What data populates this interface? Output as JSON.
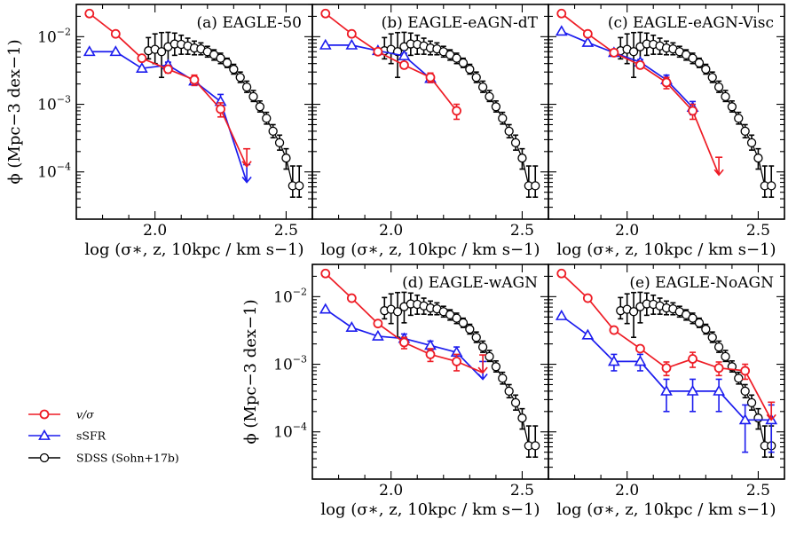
{
  "chart_data": {
    "type": "line",
    "x_scale": "linear",
    "y_scale": "log",
    "xlim": [
      1.7,
      2.6
    ],
    "ylim": [
      2e-05,
      0.03
    ],
    "xticks": [
      {
        "v": 2.0,
        "label": "2.0"
      },
      {
        "v": 2.5,
        "label": "2.5"
      }
    ],
    "yticks": [
      {
        "v": 0.0001,
        "base": "10",
        "exp": "−4"
      },
      {
        "v": 0.001,
        "base": "10",
        "exp": "−3"
      },
      {
        "v": 0.01,
        "base": "10",
        "exp": "−2"
      }
    ],
    "xlabel": "log (σ∗, z, 10kpc / km s−1)",
    "ylabel": "ϕ (Mpc−3 dex−1)",
    "legend": {
      "placement": "left, beside bottom row",
      "entries": [
        {
          "label": "v/σ",
          "color": "#ee1c25",
          "marker": "circle"
        },
        {
          "label": "sSFR",
          "color": "#1c1cee",
          "marker": "triangle"
        },
        {
          "label": "SDSS (Sohn+17b)",
          "color": "#000000",
          "marker": "circle-open"
        }
      ]
    },
    "sdss": {
      "color": "#000000",
      "x": [
        1.975,
        2.0,
        2.025,
        2.05,
        2.075,
        2.1,
        2.125,
        2.15,
        2.175,
        2.2,
        2.225,
        2.25,
        2.275,
        2.3,
        2.325,
        2.35,
        2.375,
        2.4,
        2.425,
        2.45,
        2.475,
        2.5,
        2.525,
        2.55
      ],
      "y": [
        0.0062,
        0.0065,
        0.006,
        0.0071,
        0.0078,
        0.0077,
        0.0073,
        0.0068,
        0.0066,
        0.006,
        0.0054,
        0.0048,
        0.0041,
        0.0033,
        0.0025,
        0.0018,
        0.0013,
        0.00092,
        0.00062,
        0.0004,
        0.00027,
        0.00016,
        6.23e-05,
        6.23e-05
      ],
      "err_lo": [
        0.0015,
        0.0025,
        0.0035,
        0.003,
        0.0025,
        0.0022,
        0.0018,
        0.0014,
        0.0012,
        0.001,
        0.0009,
        0.0008,
        0.0006,
        0.0005,
        0.0004,
        0.0003,
        0.0002,
        0.00015,
        0.00011,
        8e-05,
        6e-05,
        5e-05,
        2e-05,
        2e-05
      ],
      "err_hi": [
        0.0035,
        0.0045,
        0.0055,
        0.0045,
        0.0035,
        0.0028,
        0.0022,
        0.0018,
        0.0015,
        0.0012,
        0.001,
        0.0009,
        0.0007,
        0.0006,
        0.0005,
        0.0004,
        0.0003,
        0.0002,
        0.00014,
        0.0001,
        8e-05,
        6e-05,
        6e-05,
        6e-05
      ]
    },
    "panels": [
      {
        "title": "(a) EAGLE-50",
        "vsigma": {
          "x": [
            1.75,
            1.85,
            1.95,
            2.05,
            2.15,
            2.25,
            2.35
          ],
          "y": [
            0.022,
            0.011,
            0.0048,
            0.0033,
            0.0023,
            0.00085,
            0.00012
          ],
          "err": [
            0,
            0,
            0,
            0.0004,
            0.0004,
            0.0002,
            0
          ],
          "upper_limit_last": true
        },
        "ssfr": {
          "x": [
            1.75,
            1.85,
            1.95,
            2.05,
            2.15,
            2.25,
            2.35
          ],
          "y": [
            0.006,
            0.006,
            0.0034,
            0.0038,
            0.0022,
            0.0011,
            7e-05
          ],
          "err": [
            0,
            0,
            0,
            0.0004,
            0.0003,
            0.0003,
            0
          ],
          "upper_limit_last": true
        }
      },
      {
        "title": "(b) EAGLE-eAGN-dT",
        "vsigma": {
          "x": [
            1.75,
            1.85,
            1.95,
            2.05,
            2.15,
            2.25
          ],
          "y": [
            0.022,
            0.011,
            0.006,
            0.0038,
            0.0025,
            0.0008
          ],
          "err": [
            0,
            0,
            0,
            0.0004,
            0.0004,
            0.0002
          ],
          "upper_limit_last": false
        },
        "ssfr": {
          "x": [
            1.75,
            1.85,
            1.95,
            2.05,
            2.15
          ],
          "y": [
            0.0075,
            0.0075,
            0.0062,
            0.0052,
            0.0024
          ],
          "err": [
            0,
            0,
            0,
            0.0005,
            0.0003
          ],
          "upper_limit_last": false
        }
      },
      {
        "title": "(c) EAGLE-eAGN-Visc",
        "vsigma": {
          "x": [
            1.75,
            1.85,
            1.95,
            2.05,
            2.15,
            2.25,
            2.35
          ],
          "y": [
            0.022,
            0.011,
            0.0058,
            0.0038,
            0.0021,
            0.0008,
            9e-05
          ],
          "err": [
            0,
            0,
            0,
            0.0004,
            0.0004,
            0.0002,
            0
          ],
          "upper_limit_last": true
        },
        "ssfr": {
          "x": [
            1.75,
            1.85,
            1.95,
            2.05,
            2.15,
            2.25
          ],
          "y": [
            0.012,
            0.0082,
            0.0058,
            0.0042,
            0.0023,
            0.0009
          ],
          "err": [
            0,
            0,
            0,
            0.0004,
            0.0004,
            0.0002
          ],
          "upper_limit_last": false
        }
      },
      {
        "title": "(d) EAGLE-wAGN",
        "vsigma": {
          "x": [
            1.75,
            1.85,
            1.95,
            2.05,
            2.15,
            2.25,
            2.35
          ],
          "y": [
            0.022,
            0.0095,
            0.004,
            0.0021,
            0.0014,
            0.0011,
            0.00075
          ],
          "err": [
            0,
            0,
            0,
            0.0004,
            0.0003,
            0.0003,
            0
          ],
          "upper_limit_last": true
        },
        "ssfr": {
          "x": [
            1.75,
            1.85,
            1.95,
            2.05,
            2.15,
            2.25,
            2.35
          ],
          "y": [
            0.0065,
            0.0035,
            0.0026,
            0.0024,
            0.0019,
            0.0015,
            0.0006
          ],
          "err": [
            0,
            0,
            0,
            0.0004,
            0.0003,
            0.0003,
            0
          ],
          "upper_limit_last": true
        }
      },
      {
        "title": "(e) EAGLE-NoAGN",
        "vsigma": {
          "x": [
            1.75,
            1.85,
            1.95,
            2.05,
            2.15,
            2.25,
            2.35,
            2.45,
            2.55
          ],
          "y": [
            0.022,
            0.0095,
            0.0032,
            0.0017,
            0.00088,
            0.0012,
            0.00088,
            0.0008,
            0.00015
          ],
          "err": [
            0,
            0,
            0,
            0,
            0.0002,
            0.0003,
            0.0002,
            0.0002,
            0
          ],
          "upper_limit_last": true
        },
        "ssfr": {
          "x": [
            1.75,
            1.85,
            1.95,
            2.05,
            2.15,
            2.25,
            2.35,
            2.45,
            2.55
          ],
          "y": [
            0.0052,
            0.0027,
            0.0011,
            0.0011,
            0.0004,
            0.0004,
            0.0004,
            0.00015,
            0.00015
          ],
          "err": [
            0,
            0,
            0.0003,
            0.0003,
            0.0002,
            0.0002,
            0.0002,
            0.0001,
            0.0001
          ],
          "upper_limit_last": false
        }
      }
    ]
  }
}
